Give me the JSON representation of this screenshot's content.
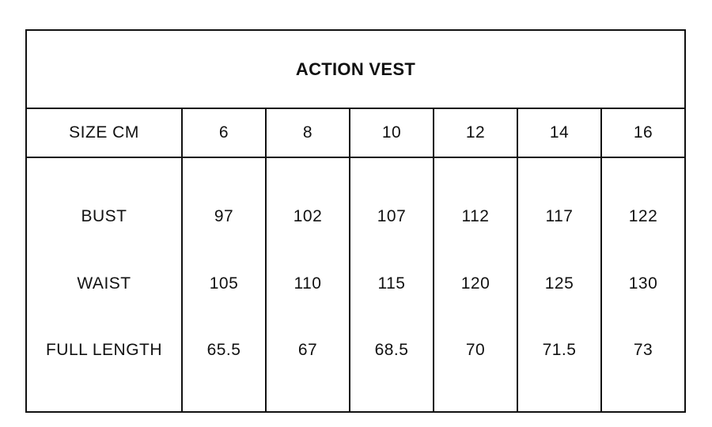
{
  "title": "ACTION VEST",
  "header": {
    "label": "SIZE CM",
    "sizes": [
      "6",
      "8",
      "10",
      "12",
      "14",
      "16"
    ]
  },
  "rows": [
    {
      "label": "BUST",
      "values": [
        "97",
        "102",
        "107",
        "112",
        "117",
        "122"
      ]
    },
    {
      "label": "WAIST",
      "values": [
        "105",
        "110",
        "115",
        "120",
        "125",
        "130"
      ]
    },
    {
      "label": "FULL LENGTH",
      "values": [
        "65.5",
        "67",
        "68.5",
        "70",
        "71.5",
        "73"
      ]
    }
  ]
}
